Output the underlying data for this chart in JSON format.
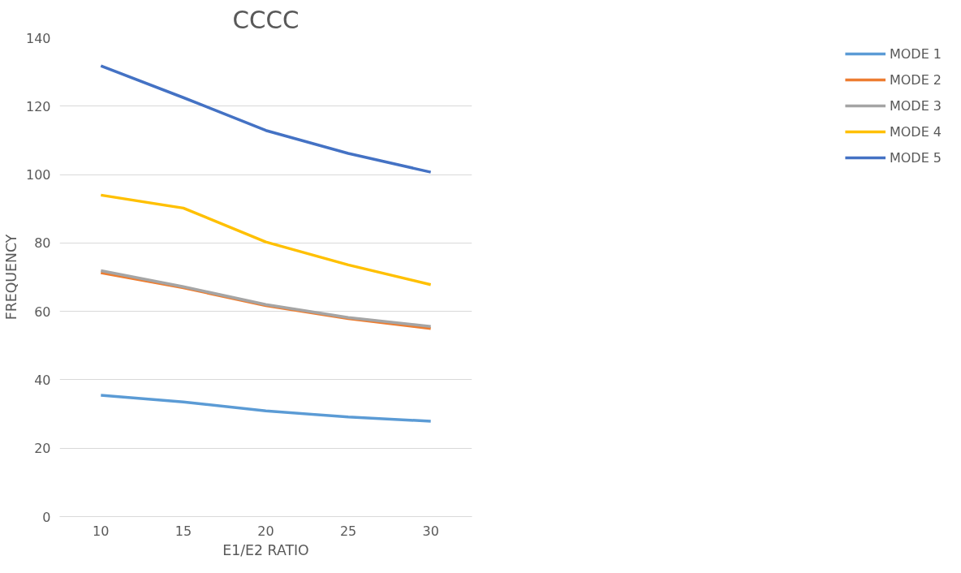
{
  "chart_data": {
    "type": "line",
    "title": "CCCC",
    "xlabel": "E1/E2 RATIO",
    "ylabel": "FREQUENCY",
    "categories": [
      "10",
      "15",
      "20",
      "25",
      "30"
    ],
    "series": [
      {
        "name": "MODE 1",
        "color": "#5b9bd5",
        "values": [
          35.5,
          33.5,
          30.9,
          29.1,
          27.9
        ]
      },
      {
        "name": "MODE 2",
        "color": "#ed7d31",
        "values": [
          71.3,
          66.9,
          61.7,
          57.9,
          55.0
        ]
      },
      {
        "name": "MODE 3",
        "color": "#a5a5a5",
        "values": [
          71.9,
          67.2,
          62.0,
          58.2,
          55.6
        ]
      },
      {
        "name": "MODE 4",
        "color": "#ffc000",
        "values": [
          94.0,
          90.2,
          80.3,
          73.6,
          67.8
        ]
      },
      {
        "name": "MODE 5",
        "color": "#4472c4",
        "values": [
          131.8,
          122.5,
          112.9,
          106.2,
          100.7
        ]
      }
    ],
    "ylim": [
      0,
      140
    ],
    "yticks": [
      0,
      20,
      40,
      60,
      80,
      100,
      120,
      140
    ],
    "grid": "y",
    "legend": "right",
    "marker": "none",
    "line_style": "solid"
  }
}
